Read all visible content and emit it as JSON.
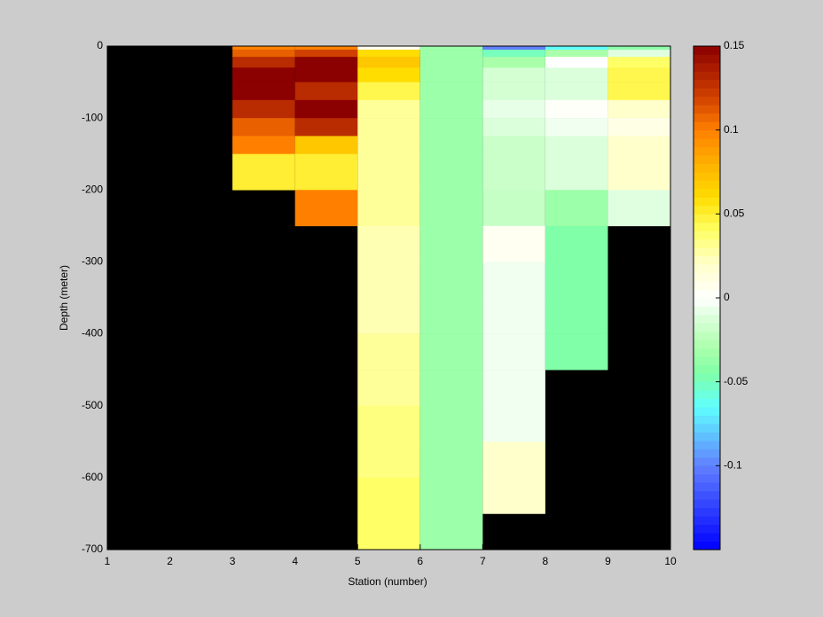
{
  "chart_data": {
    "type": "heatmap",
    "xlabel": "Station (number)",
    "ylabel": "Depth (meter)",
    "x": [
      1,
      2,
      3,
      4,
      5,
      6,
      7,
      8,
      9,
      10
    ],
    "y": [
      0,
      -5,
      -15,
      -30,
      -50,
      -75,
      -100,
      -125,
      -150,
      -200,
      -250,
      -300,
      -350,
      -400,
      -450,
      -500,
      -550,
      -600,
      -650,
      -700
    ],
    "z": [
      [
        null,
        null,
        0.1,
        0.1,
        0.005,
        -0.035,
        -0.1,
        -0.065,
        -0.04
      ],
      [
        null,
        null,
        0.11,
        0.12,
        0.06,
        -0.035,
        -0.05,
        -0.03,
        -0.01
      ],
      [
        null,
        null,
        0.13,
        0.15,
        0.07,
        -0.035,
        -0.03,
        0,
        0.04
      ],
      [
        null,
        null,
        0.15,
        0.15,
        0.06,
        -0.035,
        -0.015,
        -0.012,
        0.045
      ],
      [
        null,
        null,
        0.15,
        0.13,
        0.045,
        -0.035,
        -0.015,
        -0.012,
        0.045
      ],
      [
        null,
        null,
        0.13,
        0.15,
        0.03,
        -0.035,
        -0.008,
        0.002,
        0.02
      ],
      [
        null,
        null,
        0.11,
        0.13,
        0.03,
        -0.035,
        -0.012,
        -0.005,
        0.01
      ],
      [
        null,
        null,
        0.1,
        0.07,
        0.03,
        -0.035,
        -0.018,
        -0.012,
        0.02
      ],
      [
        null,
        null,
        0.05,
        0.05,
        0.03,
        -0.035,
        -0.018,
        -0.012,
        0.02
      ],
      [
        null,
        null,
        null,
        0.1,
        0.03,
        -0.035,
        -0.02,
        -0.035,
        -0.01
      ],
      [
        null,
        null,
        null,
        null,
        0.025,
        -0.035,
        0.005,
        -0.045,
        null
      ],
      [
        null,
        null,
        null,
        null,
        0.025,
        -0.035,
        -0.005,
        -0.045,
        null
      ],
      [
        null,
        null,
        null,
        null,
        0.025,
        -0.035,
        -0.005,
        -0.045,
        null
      ],
      [
        null,
        null,
        null,
        null,
        0.03,
        -0.035,
        -0.005,
        -0.045,
        null
      ],
      [
        null,
        null,
        null,
        null,
        0.03,
        -0.035,
        -0.005,
        null,
        null
      ],
      [
        null,
        null,
        null,
        null,
        0.035,
        -0.035,
        -0.005,
        null,
        null
      ],
      [
        null,
        null,
        null,
        null,
        0.035,
        -0.035,
        0.02,
        null,
        null
      ],
      [
        null,
        null,
        null,
        null,
        0.04,
        -0.035,
        0.02,
        null,
        null
      ],
      [
        null,
        null,
        null,
        null,
        0.04,
        -0.035,
        null,
        null,
        null
      ]
    ],
    "xlim": [
      1,
      10
    ],
    "xticks": [
      1,
      2,
      3,
      4,
      5,
      6,
      7,
      8,
      9,
      10
    ],
    "ylim": [
      -700,
      0
    ],
    "yticks": [
      0,
      -100,
      -200,
      -300,
      -400,
      -500,
      -600,
      -700
    ],
    "clim": [
      -0.15,
      0.15
    ],
    "cticks": [
      0.15,
      0.1,
      0.05,
      0,
      -0.05,
      -0.1
    ],
    "background": "#000000",
    "colormap": [
      {
        "value": -0.15,
        "color": "#0000ff"
      },
      {
        "value": -0.1,
        "color": "#6080ff"
      },
      {
        "value": -0.065,
        "color": "#60ffff"
      },
      {
        "value": -0.045,
        "color": "#80ffa8"
      },
      {
        "value": -0.03,
        "color": "#aaffaa"
      },
      {
        "value": -0.01,
        "color": "#e0ffe0"
      },
      {
        "value": 0,
        "color": "#ffffff"
      },
      {
        "value": 0.02,
        "color": "#ffffcc"
      },
      {
        "value": 0.04,
        "color": "#ffff66"
      },
      {
        "value": 0.06,
        "color": "#ffdd00"
      },
      {
        "value": 0.08,
        "color": "#ffb000"
      },
      {
        "value": 0.1,
        "color": "#ff8000"
      },
      {
        "value": 0.12,
        "color": "#d04000"
      },
      {
        "value": 0.15,
        "color": "#8b0000"
      }
    ]
  }
}
